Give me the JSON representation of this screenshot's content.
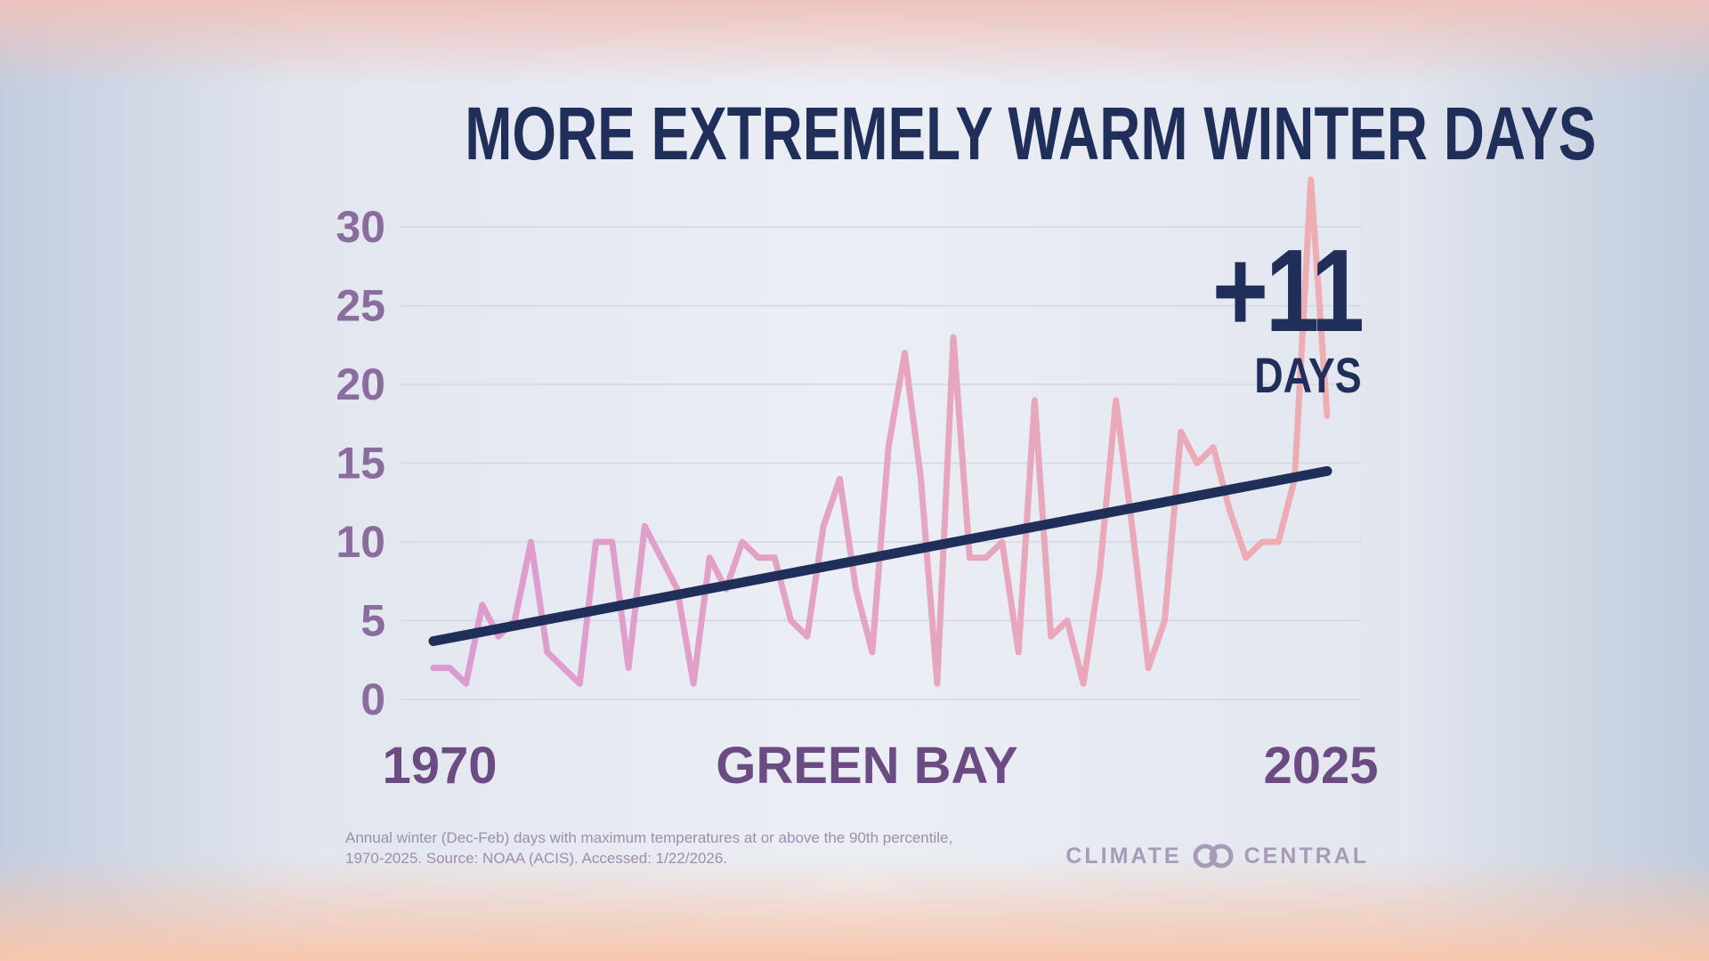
{
  "title": "MORE EXTREMELY WARM WINTER DAYS",
  "callout": {
    "value": "+11",
    "unit": "DAYS"
  },
  "source_text": {
    "line1": "Annual winter (Dec-Feb) days with maximum temperatures at or above the 90th percentile,",
    "line2": "1970-2025. Source: NOAA (ACIS). Accessed: 1/22/2026."
  },
  "logo": {
    "left": "CLIMATE",
    "right": "CENTRAL",
    "icon": "linked-rings-icon"
  },
  "colors": {
    "title": "#1f2f5a",
    "trend": "#1f2f5a",
    "series_start": "#dc9bd0",
    "series_end": "#eeadb2",
    "axis_text": "#8b6c9f",
    "label_text": "#6a4b82",
    "grid": "#d3d7e2"
  },
  "chart_data": {
    "type": "line",
    "xlabel": "GREEN BAY",
    "x_start_label": "1970",
    "x_end_label": "2025",
    "x": [
      1970,
      1971,
      1972,
      1973,
      1974,
      1975,
      1976,
      1977,
      1978,
      1979,
      1980,
      1981,
      1982,
      1983,
      1984,
      1985,
      1986,
      1987,
      1988,
      1989,
      1990,
      1991,
      1992,
      1993,
      1994,
      1995,
      1996,
      1997,
      1998,
      1999,
      2000,
      2001,
      2002,
      2003,
      2004,
      2005,
      2006,
      2007,
      2008,
      2009,
      2010,
      2011,
      2012,
      2013,
      2014,
      2015,
      2016,
      2017,
      2018,
      2019,
      2020,
      2021,
      2022,
      2023,
      2024,
      2025
    ],
    "series": [
      {
        "values": [
          2,
          2,
          1,
          6,
          4,
          5,
          10,
          3,
          2,
          1,
          10,
          10,
          2,
          11,
          9,
          7,
          1,
          9,
          7,
          10,
          9,
          9,
          5,
          4,
          11,
          14,
          7,
          3,
          16,
          22,
          14,
          1,
          23,
          9,
          9,
          10,
          3,
          19,
          4,
          5,
          1,
          8,
          19,
          11,
          2,
          5,
          17,
          15,
          16,
          12,
          9,
          10,
          10,
          14,
          33,
          18
        ]
      }
    ],
    "trend": {
      "start": [
        1970,
        3.7
      ],
      "end": [
        2025,
        14.5
      ]
    },
    "yticks": [
      0,
      5,
      10,
      15,
      20,
      25,
      30
    ],
    "ylim": [
      0,
      33
    ],
    "grid": true,
    "legend": "none"
  }
}
